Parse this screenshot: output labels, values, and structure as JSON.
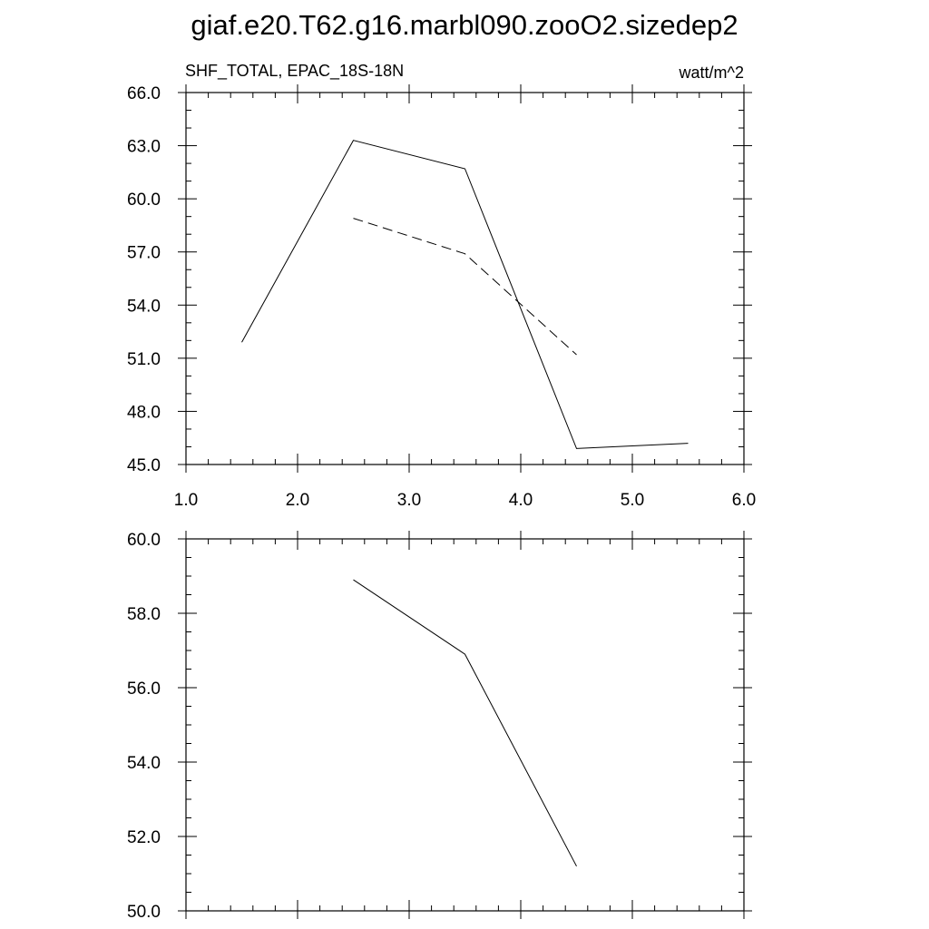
{
  "title": "giaf.e20.T62.g16.marbl090.zooO2.sizedep2",
  "chart_data": [
    {
      "type": "line",
      "left_label": "SHF_TOTAL, EPAC_18S-18N",
      "right_label": "watt/m^2",
      "xlim": [
        1.0,
        6.0
      ],
      "ylim": [
        45.0,
        66.0
      ],
      "x_ticks": [
        "1.0",
        "2.0",
        "3.0",
        "4.0",
        "5.0",
        "6.0"
      ],
      "y_ticks": [
        "45.0",
        "48.0",
        "51.0",
        "54.0",
        "57.0",
        "60.0",
        "63.0",
        "66.0"
      ],
      "series": [
        {
          "style": "solid",
          "x": [
            1.5,
            2.5,
            3.5,
            4.5,
            5.5
          ],
          "y": [
            51.9,
            63.3,
            61.7,
            45.9,
            46.2
          ]
        },
        {
          "style": "dashed",
          "x": [
            2.5,
            3.5,
            4.5
          ],
          "y": [
            58.9,
            56.9,
            51.2
          ]
        }
      ]
    },
    {
      "type": "line",
      "xlim": [
        1.0,
        6.0
      ],
      "ylim": [
        50.0,
        60.0
      ],
      "y_ticks": [
        "50.0",
        "52.0",
        "54.0",
        "56.0",
        "58.0",
        "60.0"
      ],
      "series": [
        {
          "style": "solid",
          "x": [
            2.5,
            3.5,
            4.5
          ],
          "y": [
            58.9,
            56.9,
            51.2
          ]
        }
      ]
    }
  ]
}
